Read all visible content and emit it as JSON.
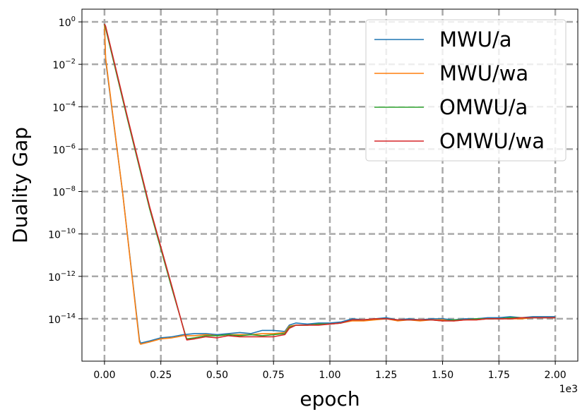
{
  "chart_data": {
    "type": "line",
    "xlabel": "epoch",
    "ylabel": "Duality Gap",
    "x_offset_label": "1e3",
    "xscale": "linear",
    "yscale": "log",
    "xlim": [
      -0.1,
      2.1
    ],
    "ylim_log10": [
      -16.0,
      0.6
    ],
    "grid": true,
    "legend_position": "top-right",
    "x_ticks": [
      0.0,
      0.25,
      0.5,
      0.75,
      1.0,
      1.25,
      1.5,
      1.75,
      2.0
    ],
    "x_tick_labels": [
      "0.00",
      "0.25",
      "0.50",
      "0.75",
      "1.00",
      "1.25",
      "1.50",
      "1.75",
      "2.00"
    ],
    "y_tick_exponents": [
      0,
      -2,
      -4,
      -6,
      -8,
      -10,
      -12,
      -14
    ],
    "y_tick_exponent_labels": [
      "0",
      "−2",
      "−4",
      "−6",
      "−8",
      "−10",
      "−12",
      "−14"
    ],
    "y_tick_base": "10",
    "series": [
      {
        "name": "MWU/a",
        "color": "#1f77b4",
        "x": [
          0.0,
          0.005,
          0.08,
          0.155,
          0.16,
          0.2,
          0.25,
          0.3,
          0.35,
          0.4,
          0.45,
          0.5,
          0.55,
          0.6,
          0.65,
          0.7,
          0.75,
          0.8,
          0.82,
          0.85,
          0.9,
          0.95,
          1.0,
          1.05,
          1.1,
          1.15,
          1.2,
          1.25,
          1.3,
          1.35,
          1.4,
          1.45,
          1.5,
          1.55,
          1.6,
          1.65,
          1.7,
          1.75,
          1.8,
          1.85,
          1.9,
          1.95,
          2.0
        ],
        "log10_y": [
          -0.1,
          -1.8,
          -8.0,
          -15.0,
          -15.15,
          -15.05,
          -14.9,
          -14.85,
          -14.75,
          -14.7,
          -14.7,
          -14.75,
          -14.7,
          -14.65,
          -14.7,
          -14.55,
          -14.55,
          -14.6,
          -14.3,
          -14.2,
          -14.25,
          -14.2,
          -14.2,
          -14.15,
          -14.0,
          -14.05,
          -14.0,
          -13.95,
          -14.05,
          -14.0,
          -14.05,
          -14.0,
          -14.0,
          -14.05,
          -14.0,
          -14.0,
          -13.95,
          -13.95,
          -13.9,
          -13.95,
          -13.9,
          -13.9,
          -13.9
        ]
      },
      {
        "name": "MWU/wa",
        "color": "#ff7f0e",
        "x": [
          0.0,
          0.005,
          0.08,
          0.155,
          0.16,
          0.2,
          0.25,
          0.3,
          0.35,
          0.4,
          0.45,
          0.5,
          0.55,
          0.6,
          0.65,
          0.7,
          0.75,
          0.8,
          0.82,
          0.85,
          0.9,
          0.95,
          1.0,
          1.05,
          1.1,
          1.15,
          1.2,
          1.25,
          1.3,
          1.35,
          1.4,
          1.45,
          1.5,
          1.55,
          1.6,
          1.65,
          1.7,
          1.75,
          1.8,
          1.85,
          1.9,
          1.95,
          2.0
        ],
        "log10_y": [
          -0.1,
          -1.7,
          -8.0,
          -15.1,
          -15.2,
          -15.1,
          -14.95,
          -14.9,
          -14.8,
          -14.8,
          -14.75,
          -14.8,
          -14.75,
          -14.75,
          -14.75,
          -14.7,
          -14.7,
          -14.65,
          -14.35,
          -14.3,
          -14.3,
          -14.25,
          -14.25,
          -14.2,
          -14.1,
          -14.1,
          -14.05,
          -14.0,
          -14.1,
          -14.05,
          -14.1,
          -14.05,
          -14.05,
          -14.1,
          -14.05,
          -14.05,
          -14.0,
          -14.0,
          -14.0,
          -14.0,
          -13.95,
          -13.95,
          -13.95
        ]
      },
      {
        "name": "OMWU/a",
        "color": "#2ca02c",
        "x": [
          0.0,
          0.005,
          0.1,
          0.2,
          0.3,
          0.36,
          0.365,
          0.4,
          0.45,
          0.5,
          0.55,
          0.6,
          0.65,
          0.7,
          0.75,
          0.8,
          0.82,
          0.85,
          0.9,
          0.95,
          1.0,
          1.05,
          1.1,
          1.15,
          1.2,
          1.25,
          1.3,
          1.35,
          1.4,
          1.45,
          1.5,
          1.55,
          1.6,
          1.65,
          1.7,
          1.75,
          1.8,
          1.85,
          1.9,
          1.95,
          2.0
        ],
        "log10_y": [
          -0.1,
          -0.3,
          -4.5,
          -8.8,
          -12.6,
          -14.8,
          -14.95,
          -14.9,
          -14.8,
          -14.8,
          -14.75,
          -14.8,
          -14.75,
          -14.8,
          -14.75,
          -14.7,
          -14.4,
          -14.3,
          -14.3,
          -14.25,
          -14.25,
          -14.2,
          -14.05,
          -14.05,
          -14.0,
          -14.0,
          -14.05,
          -14.05,
          -14.05,
          -14.05,
          -14.1,
          -14.05,
          -14.05,
          -14.0,
          -14.0,
          -14.0,
          -13.95,
          -13.95,
          -13.95,
          -13.95,
          -13.95
        ]
      },
      {
        "name": "OMWU/wa",
        "color": "#d62728",
        "x": [
          0.0,
          0.005,
          0.1,
          0.2,
          0.3,
          0.36,
          0.365,
          0.4,
          0.45,
          0.5,
          0.55,
          0.6,
          0.65,
          0.7,
          0.75,
          0.8,
          0.82,
          0.85,
          0.9,
          0.95,
          1.0,
          1.05,
          1.1,
          1.15,
          1.2,
          1.25,
          1.3,
          1.35,
          1.4,
          1.45,
          1.5,
          1.55,
          1.6,
          1.65,
          1.7,
          1.75,
          1.8,
          1.85,
          1.9,
          1.95,
          2.0
        ],
        "log10_y": [
          -0.1,
          -0.2,
          -4.4,
          -8.7,
          -12.5,
          -14.85,
          -15.0,
          -14.95,
          -14.85,
          -14.9,
          -14.8,
          -14.85,
          -14.85,
          -14.85,
          -14.85,
          -14.75,
          -14.45,
          -14.3,
          -14.3,
          -14.3,
          -14.25,
          -14.2,
          -14.05,
          -14.05,
          -14.0,
          -14.0,
          -14.05,
          -14.05,
          -14.05,
          -14.05,
          -14.1,
          -14.1,
          -14.05,
          -14.05,
          -14.0,
          -14.0,
          -14.0,
          -13.95,
          -13.95,
          -13.95,
          -13.95
        ]
      }
    ]
  }
}
